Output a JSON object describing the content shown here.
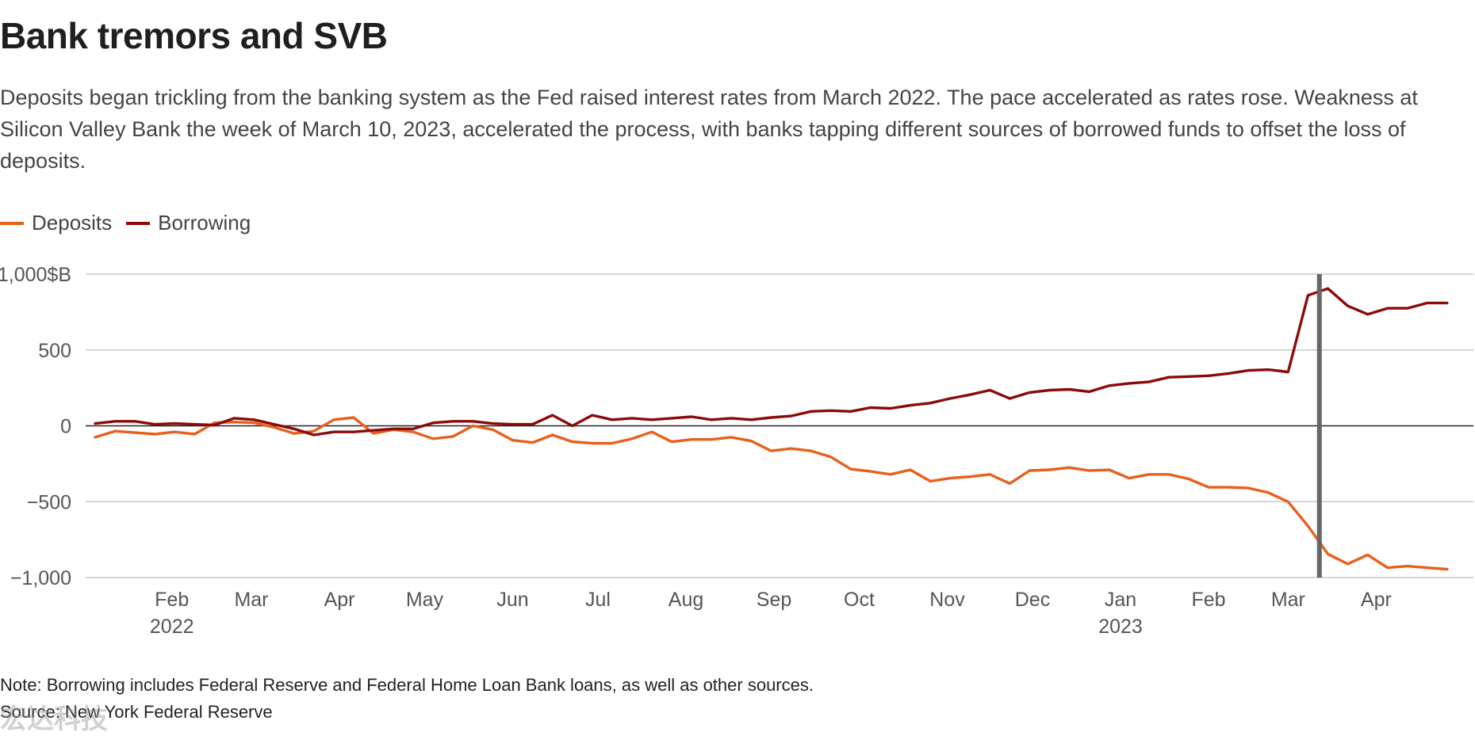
{
  "chart_data": {
    "type": "line",
    "title": "Bank tremors and SVB",
    "subtitle": "Deposits began trickling from the banking system as the Fed raised interest rates from March 2022. The pace accelerated as rates rose. Weakness at Silicon Valley Bank the week of March 10, 2023, accelerated the process, with banks tapping different sources of borrowed funds to offset the loss of deposits.",
    "ylim": [
      -1000,
      1000
    ],
    "yticks": [
      {
        "value": 1000,
        "label": "1,000$B"
      },
      {
        "value": 500,
        "label": "500"
      },
      {
        "value": 0,
        "label": "0"
      },
      {
        "value": -500,
        "label": "−500"
      },
      {
        "value": -1000,
        "label": "−1,000"
      }
    ],
    "xlim": [
      "2022-01-05",
      "2023-05-03"
    ],
    "xticks": [
      {
        "date": "2022-02-01",
        "label": "Feb",
        "year": "2022"
      },
      {
        "date": "2022-03-01",
        "label": "Mar",
        "year": ""
      },
      {
        "date": "2022-04-01",
        "label": "Apr",
        "year": ""
      },
      {
        "date": "2022-05-01",
        "label": "May",
        "year": ""
      },
      {
        "date": "2022-06-01",
        "label": "Jun",
        "year": ""
      },
      {
        "date": "2022-07-01",
        "label": "Jul",
        "year": ""
      },
      {
        "date": "2022-08-01",
        "label": "Aug",
        "year": ""
      },
      {
        "date": "2022-09-01",
        "label": "Sep",
        "year": ""
      },
      {
        "date": "2022-10-01",
        "label": "Oct",
        "year": ""
      },
      {
        "date": "2022-11-01",
        "label": "Nov",
        "year": ""
      },
      {
        "date": "2022-12-01",
        "label": "Dec",
        "year": ""
      },
      {
        "date": "2023-01-01",
        "label": "Jan",
        "year": "2023"
      },
      {
        "date": "2023-02-01",
        "label": "Feb",
        "year": ""
      },
      {
        "date": "2023-03-01",
        "label": "Mar",
        "year": ""
      },
      {
        "date": "2023-04-01",
        "label": "Apr",
        "year": ""
      }
    ],
    "marker": {
      "date": "2023-03-12"
    },
    "x": [
      "2022-01-05",
      "2022-01-12",
      "2022-01-19",
      "2022-01-26",
      "2022-02-02",
      "2022-02-09",
      "2022-02-16",
      "2022-02-23",
      "2022-03-02",
      "2022-03-09",
      "2022-03-16",
      "2022-03-23",
      "2022-03-30",
      "2022-04-06",
      "2022-04-13",
      "2022-04-20",
      "2022-04-27",
      "2022-05-04",
      "2022-05-11",
      "2022-05-18",
      "2022-05-25",
      "2022-06-01",
      "2022-06-08",
      "2022-06-15",
      "2022-06-22",
      "2022-06-29",
      "2022-07-06",
      "2022-07-13",
      "2022-07-20",
      "2022-07-27",
      "2022-08-03",
      "2022-08-10",
      "2022-08-17",
      "2022-08-24",
      "2022-08-31",
      "2022-09-07",
      "2022-09-14",
      "2022-09-21",
      "2022-09-28",
      "2022-10-05",
      "2022-10-12",
      "2022-10-19",
      "2022-10-26",
      "2022-11-02",
      "2022-11-09",
      "2022-11-16",
      "2022-11-23",
      "2022-11-30",
      "2022-12-07",
      "2022-12-14",
      "2022-12-21",
      "2022-12-28",
      "2023-01-04",
      "2023-01-11",
      "2023-01-18",
      "2023-01-25",
      "2023-02-01",
      "2023-02-08",
      "2023-02-15",
      "2023-02-22",
      "2023-03-01",
      "2023-03-08",
      "2023-03-15",
      "2023-03-22",
      "2023-03-29",
      "2023-04-05",
      "2023-04-12",
      "2023-04-19",
      "2023-04-26"
    ],
    "series": [
      {
        "name": "Deposits",
        "color": "#e8601c",
        "values": [
          -75,
          -35,
          -45,
          -55,
          -40,
          -55,
          20,
          25,
          20,
          -10,
          -50,
          -35,
          40,
          55,
          -50,
          -25,
          -40,
          -85,
          -70,
          0,
          -25,
          -95,
          -110,
          -60,
          -105,
          -115,
          -115,
          -85,
          -40,
          -105,
          -90,
          -90,
          -75,
          -100,
          -165,
          -150,
          -165,
          -205,
          -285,
          -300,
          -320,
          -290,
          -365,
          -345,
          -335,
          -320,
          -380,
          -295,
          -290,
          -275,
          -295,
          -290,
          -345,
          -320,
          -320,
          -350,
          -405,
          -405,
          -410,
          -440,
          -500,
          -660,
          -845,
          -910,
          -850,
          -935,
          -925,
          -935,
          -945
        ]
      },
      {
        "name": "Borrowing",
        "color": "#8b0a0a",
        "values": [
          15,
          30,
          30,
          10,
          15,
          10,
          5,
          50,
          40,
          10,
          -20,
          -60,
          -40,
          -40,
          -30,
          -20,
          -20,
          20,
          30,
          30,
          15,
          10,
          10,
          70,
          0,
          70,
          40,
          50,
          40,
          50,
          60,
          40,
          50,
          40,
          55,
          65,
          95,
          100,
          95,
          120,
          115,
          135,
          150,
          180,
          205,
          235,
          180,
          220,
          235,
          240,
          225,
          265,
          280,
          290,
          320,
          325,
          330,
          345,
          365,
          370,
          355,
          860,
          905,
          790,
          735,
          775,
          775,
          810,
          810
        ]
      }
    ]
  },
  "note": "Note: Borrowing includes Federal Reserve and Federal Home Loan Bank loans, as well as other sources.",
  "source": "Source: New York Federal Reserve",
  "watermark": "宏达科技"
}
